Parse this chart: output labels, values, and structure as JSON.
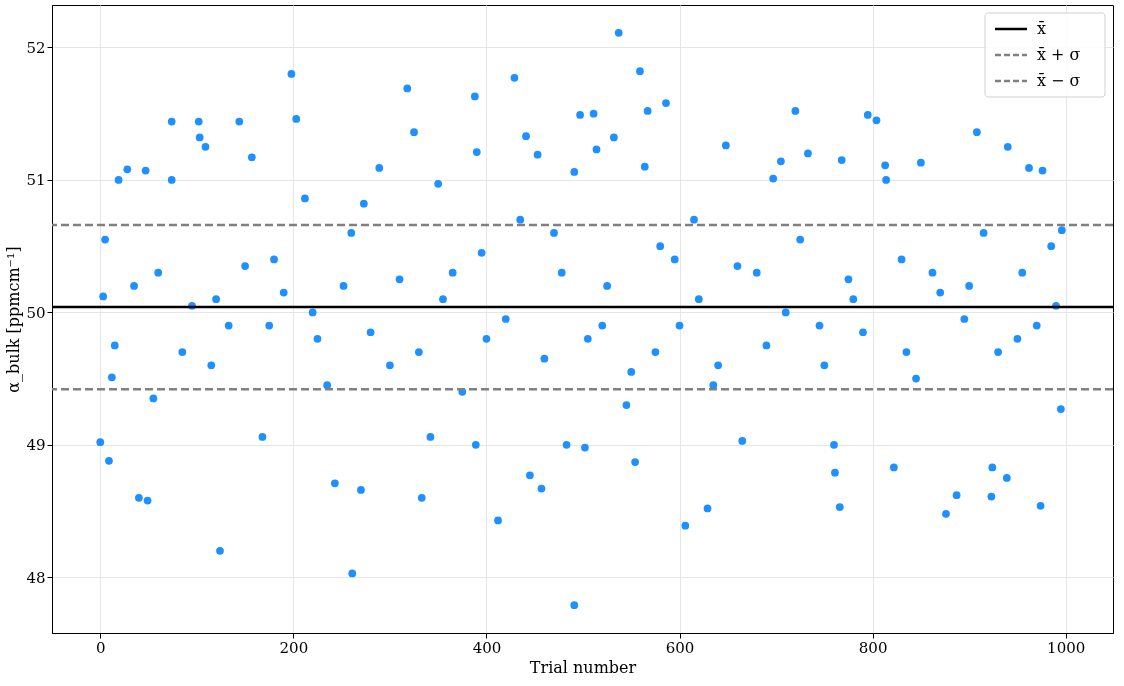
{
  "chart_data": {
    "type": "scatter",
    "xlabel": "Trial number",
    "ylabel": "α_bulk [ppmcm⁻¹]",
    "xlim": [
      -50,
      1049
    ],
    "ylim": [
      47.58,
      52.32
    ],
    "xticks": [
      0,
      200,
      400,
      600,
      800,
      1000
    ],
    "yticks": [
      48,
      49,
      50,
      51,
      52
    ],
    "grid": true,
    "legend": "top right",
    "marker": "circle",
    "series": [
      {
        "color": "#1e90ff",
        "x": [
          0,
          3,
          5,
          9,
          12,
          19,
          28,
          40,
          47,
          49,
          60,
          74,
          74,
          85,
          102,
          103,
          109,
          120,
          124,
          133,
          144,
          157,
          168,
          180,
          198,
          203,
          212,
          225,
          243,
          252,
          261,
          270,
          273,
          289,
          300,
          318,
          325,
          333,
          342,
          350,
          365,
          388,
          389,
          390,
          400,
          412,
          429,
          441,
          445,
          453,
          457,
          470,
          483,
          491,
          491,
          497,
          502,
          511,
          514,
          520,
          532,
          537,
          545,
          554,
          559,
          564,
          567,
          575,
          586,
          595,
          606,
          615,
          629,
          640,
          648,
          665,
          680,
          697,
          705,
          720,
          733,
          745,
          760,
          761,
          766,
          768,
          780,
          795,
          804,
          813,
          814,
          822,
          835,
          850,
          862,
          876,
          887,
          900,
          908,
          923,
          924,
          939,
          940,
          950,
          962,
          974,
          976,
          985,
          995,
          996,
          15,
          35,
          55,
          95,
          115,
          150,
          175,
          190,
          220,
          235,
          260,
          280,
          310,
          330,
          355,
          375,
          395,
          420,
          435,
          460,
          478,
          505,
          525,
          550,
          580,
          600,
          620,
          635,
          660,
          690,
          710,
          725,
          750,
          775,
          790,
          830,
          845,
          870,
          895,
          915,
          930,
          955,
          970,
          990
        ],
        "values": [
          49.02,
          50.12,
          50.55,
          48.88,
          49.51,
          51.0,
          51.08,
          48.6,
          51.07,
          48.58,
          50.3,
          51.0,
          51.44,
          49.7,
          51.44,
          51.32,
          51.25,
          50.1,
          48.2,
          49.9,
          51.44,
          51.17,
          49.06,
          50.4,
          51.8,
          51.46,
          50.86,
          49.8,
          48.71,
          50.2,
          48.03,
          48.66,
          50.82,
          51.09,
          49.6,
          51.69,
          51.36,
          48.6,
          49.06,
          50.97,
          50.3,
          51.63,
          49.0,
          51.21,
          49.8,
          48.43,
          51.77,
          51.33,
          48.77,
          51.19,
          48.67,
          50.6,
          49.0,
          51.06,
          47.79,
          51.49,
          48.98,
          51.5,
          51.23,
          49.9,
          51.32,
          52.11,
          49.3,
          48.87,
          51.82,
          51.1,
          51.52,
          49.7,
          51.58,
          50.4,
          48.39,
          50.7,
          48.52,
          49.6,
          51.26,
          49.03,
          50.3,
          51.01,
          51.14,
          51.52,
          51.2,
          49.9,
          49.0,
          48.79,
          48.53,
          51.15,
          50.1,
          51.49,
          51.45,
          51.11,
          51.0,
          48.83,
          49.7,
          51.13,
          50.3,
          48.48,
          48.62,
          50.2,
          51.36,
          48.61,
          48.83,
          48.75,
          51.25,
          49.8,
          51.09,
          48.54,
          51.07,
          50.5,
          49.27,
          50.62,
          49.75,
          50.2,
          49.35,
          50.05,
          49.6,
          50.35,
          49.9,
          50.15,
          50.0,
          49.45,
          50.6,
          49.85,
          50.25,
          49.7,
          50.1,
          49.4,
          50.45,
          49.95,
          50.7,
          49.65,
          50.3,
          49.8,
          50.2,
          49.55,
          50.5,
          49.9,
          50.1,
          49.45,
          50.35,
          49.75,
          50.0,
          50.55,
          49.6,
          50.25,
          49.85,
          50.4,
          49.5,
          50.15,
          49.95,
          50.6,
          49.7,
          50.3,
          49.9,
          50.05
        ]
      }
    ],
    "ref_lines": [
      {
        "axis": "y",
        "value": 50.04,
        "label": "x̄",
        "color": "#000000",
        "line_style": "solid"
      },
      {
        "axis": "y",
        "value": 50.66,
        "label": "x̄ + σ",
        "color": "#808080",
        "line_style": "dashed"
      },
      {
        "axis": "y",
        "value": 49.42,
        "label": "x̄ − σ",
        "color": "#808080",
        "line_style": "dashed"
      }
    ]
  }
}
